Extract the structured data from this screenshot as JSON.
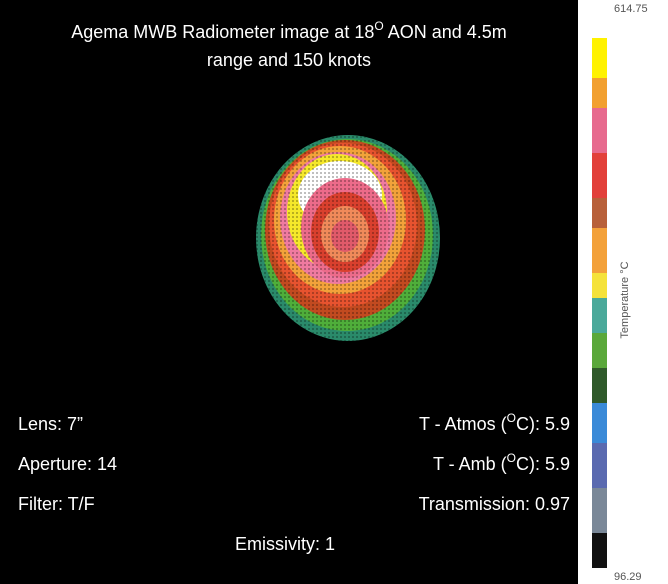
{
  "image": {
    "title": {
      "line1": [
        "Agema MWB Radiometer image at 18",
        "O",
        " AON and 4.5m"
      ],
      "line2": "range and 150 knots"
    },
    "left_labels": [
      "Lens: 7”",
      "Aperture: 14",
      "Filter: T/F"
    ],
    "right_labels": [
      [
        "T - Atmos (",
        "O",
        "C): 5.9"
      ],
      [
        "T - Amb (",
        "O",
        "C): 5.9"
      ],
      [
        "Transmission: 0.97"
      ]
    ],
    "bottom_label": "Emissivity: 1"
  },
  "colorbar": {
    "max": 614.75,
    "min": 96.29,
    "label": "Temperature °C"
  }
}
